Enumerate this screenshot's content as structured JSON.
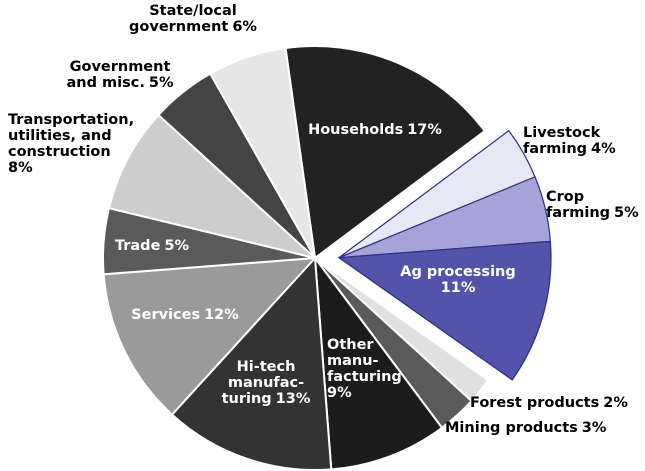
{
  "chart_data": {
    "type": "pie",
    "categories": [
      [
        "Households"
      ],
      [
        "Livestock",
        "farming"
      ],
      [
        "Crop",
        "farming"
      ],
      [
        "Ag processing"
      ],
      [
        "Forest products"
      ],
      [
        "Mining products"
      ],
      [
        "Other",
        "manu-",
        "facturing"
      ],
      [
        "Hi-tech",
        "manufac-",
        "turing"
      ],
      [
        "Services"
      ],
      [
        "Trade"
      ],
      [
        "Transportation,",
        "utilities, and",
        "construction"
      ],
      [
        "Government",
        "and misc."
      ],
      [
        "State/local",
        "government"
      ]
    ],
    "values": [
      17,
      4,
      5,
      11,
      2,
      3,
      9,
      13,
      12,
      5,
      8,
      5,
      6
    ],
    "value_labels": [
      "17%",
      "4%",
      "5%",
      "11%",
      "2%",
      "3%",
      "9%",
      "13%",
      "12%",
      "5%",
      "8%",
      "5%",
      "6%"
    ],
    "colors": [
      "#222222",
      "#e8e8f4",
      "#a4a4d8",
      "#5353a9",
      "#e0e0e0",
      "#5a5a5a",
      "#1c1c1c",
      "#333333",
      "#9a9a9a",
      "#5a5a5a",
      "#cdcdcd",
      "#444444",
      "#e6e6e6"
    ],
    "exploded": [
      false,
      true,
      true,
      true,
      false,
      false,
      false,
      false,
      false,
      false,
      false,
      false,
      false
    ]
  }
}
